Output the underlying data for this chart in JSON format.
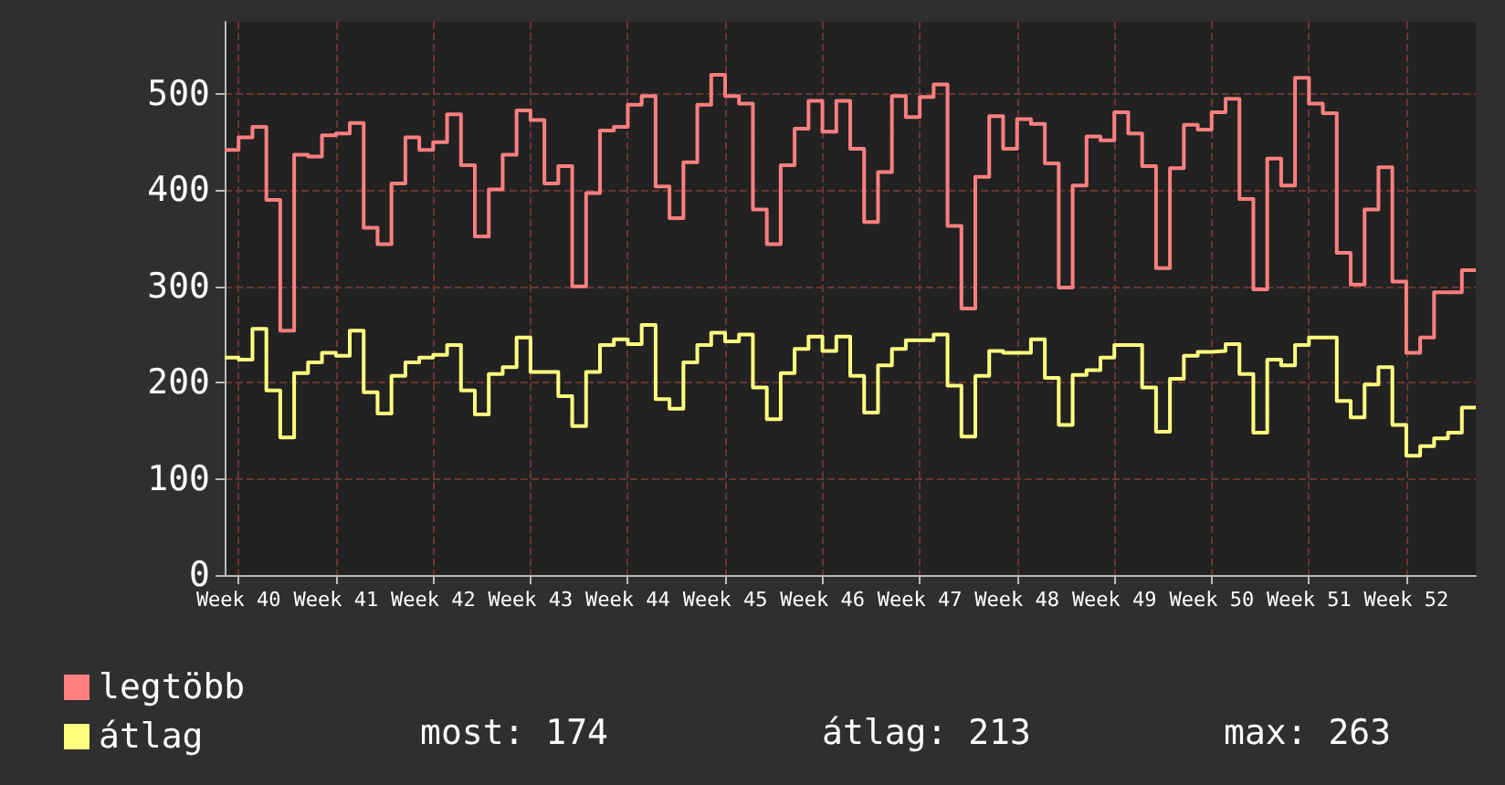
{
  "chart_data": {
    "type": "step",
    "categories": [
      null,
      "Week 40",
      null,
      null,
      null,
      null,
      null,
      null,
      "Week 41",
      null,
      null,
      null,
      null,
      null,
      null,
      "Week 42",
      null,
      null,
      null,
      null,
      null,
      null,
      "Week 43",
      null,
      null,
      null,
      null,
      null,
      null,
      "Week 44",
      null,
      null,
      null,
      null,
      null,
      null,
      "Week 45",
      null,
      null,
      null,
      null,
      null,
      null,
      "Week 46",
      null,
      null,
      null,
      null,
      null,
      null,
      "Week 47",
      null,
      null,
      null,
      null,
      null,
      null,
      "Week 48",
      null,
      null,
      null,
      null,
      null,
      null,
      "Week 49",
      null,
      null,
      null,
      null,
      null,
      null,
      "Week 50",
      null,
      null,
      null,
      null,
      null,
      null,
      "Week 51",
      null,
      null,
      null,
      null,
      null,
      null,
      "Week 52",
      null,
      null,
      null,
      null,
      null
    ],
    "series": [
      {
        "name": "legtöbb",
        "color": "#ff7f7f",
        "values": [
          442,
          455,
          466,
          390,
          254,
          437,
          435,
          457,
          459,
          470,
          361,
          344,
          407,
          455,
          442,
          450,
          479,
          426,
          352,
          401,
          437,
          483,
          473,
          407,
          425,
          300,
          397,
          462,
          466,
          489,
          498,
          404,
          371,
          429,
          489,
          520,
          498,
          490,
          380,
          344,
          426,
          464,
          493,
          461,
          493,
          443,
          367,
          419,
          498,
          476,
          497,
          510,
          363,
          277,
          414,
          477,
          443,
          474,
          469,
          428,
          299,
          405,
          456,
          452,
          481,
          459,
          425,
          319,
          423,
          468,
          463,
          481,
          495,
          391,
          297,
          433,
          405,
          517,
          490,
          480,
          335,
          302,
          380,
          424,
          305,
          231,
          247,
          294,
          294,
          317,
          317
        ]
      },
      {
        "name": "átlag",
        "color": "#ffff7f",
        "values": [
          226,
          224,
          256,
          192,
          143,
          210,
          221,
          231,
          228,
          254,
          190,
          168,
          207,
          221,
          226,
          229,
          239,
          192,
          167,
          209,
          216,
          247,
          211,
          211,
          186,
          155,
          211,
          239,
          245,
          240,
          260,
          183,
          173,
          221,
          239,
          252,
          243,
          250,
          195,
          162,
          210,
          235,
          248,
          233,
          248,
          207,
          169,
          218,
          235,
          244,
          244,
          250,
          197,
          144,
          207,
          233,
          231,
          231,
          245,
          205,
          156,
          208,
          213,
          226,
          239,
          239,
          195,
          149,
          204,
          228,
          232,
          233,
          240,
          209,
          148,
          224,
          218,
          239,
          247,
          247,
          181,
          164,
          198,
          216,
          156,
          124,
          134,
          142,
          148,
          174,
          174
        ]
      }
    ],
    "ylim": [
      0,
      575
    ],
    "yticks": [
      0,
      100,
      200,
      300,
      400,
      500
    ],
    "grid": true,
    "legend": "bottom left",
    "marker": "none",
    "line_style": "solid",
    "annotations": [
      "most: 174",
      "átlag: 213",
      "max: 263"
    ]
  }
}
